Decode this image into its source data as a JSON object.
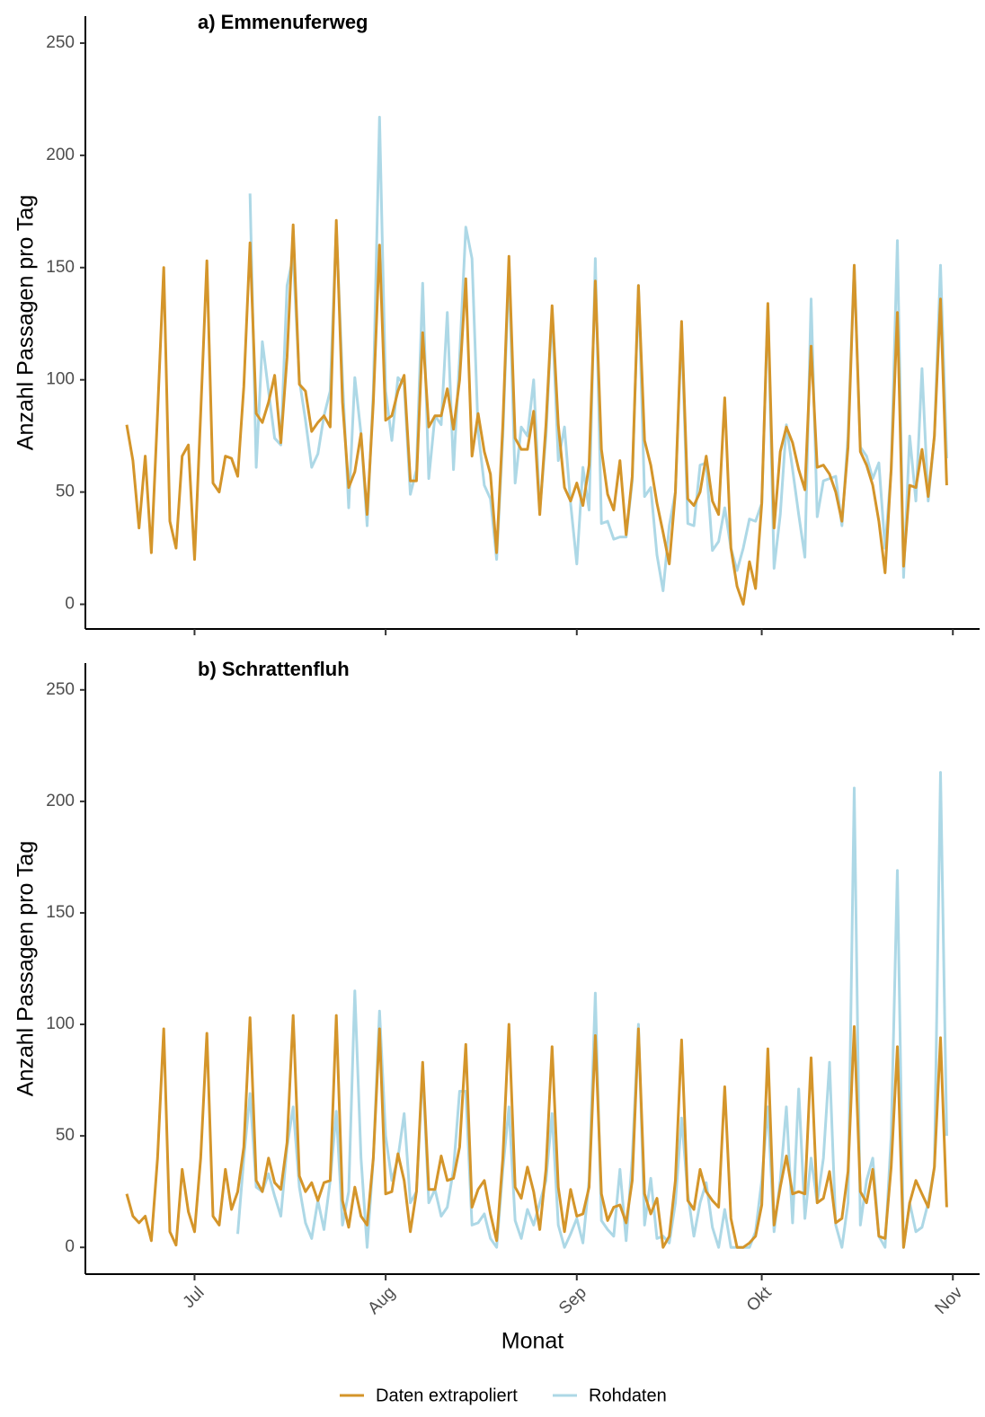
{
  "chart_data": [
    {
      "type": "line",
      "title": "a) Emmenuferweg",
      "ylabel": "Anzahl Passagen pro Tag",
      "ylim": [
        -11,
        262
      ],
      "yticks": [
        0,
        50,
        100,
        150,
        200,
        250
      ],
      "series": [
        {
          "name": "Daten extrapoliert",
          "color": "#d4952a",
          "values": [
            80,
            64,
            34,
            66,
            23,
            85,
            150,
            37,
            25,
            66,
            71,
            20,
            85,
            153,
            54,
            50,
            66,
            65,
            57,
            97,
            161,
            85,
            81,
            90,
            102,
            72,
            110,
            169,
            98,
            95,
            77,
            81,
            84,
            79,
            171,
            90,
            52,
            59,
            76,
            40,
            90,
            160,
            82,
            84,
            95,
            102,
            55,
            55,
            121,
            79,
            84,
            84,
            96,
            78,
            100,
            145,
            66,
            85,
            68,
            58,
            23,
            80,
            155,
            74,
            69,
            69,
            86,
            40,
            80,
            133,
            80,
            52,
            46,
            54,
            44,
            62,
            144,
            69,
            49,
            42,
            64,
            31,
            57,
            142,
            73,
            62,
            45,
            32,
            18,
            50,
            126,
            47,
            44,
            50,
            66,
            46,
            40,
            92,
            25,
            8,
            0,
            19,
            7,
            45,
            134,
            34,
            68,
            79,
            72,
            60,
            51,
            115,
            61,
            62,
            58,
            50,
            37,
            70,
            151,
            68,
            62,
            53,
            37,
            14,
            60,
            130,
            17,
            53,
            52,
            69,
            48,
            75,
            136,
            53,
            null
          ]
        },
        {
          "name": "Rohdaten",
          "color": "#add8e6",
          "values": [
            null,
            null,
            null,
            null,
            null,
            null,
            null,
            null,
            null,
            null,
            null,
            null,
            null,
            null,
            null,
            null,
            null,
            null,
            null,
            null,
            183,
            61,
            117,
            95,
            74,
            71,
            142,
            155,
            100,
            82,
            61,
            67,
            84,
            95,
            168,
            100,
            43,
            101,
            76,
            35,
            95,
            217,
            95,
            73,
            101,
            98,
            49,
            60,
            143,
            56,
            84,
            80,
            130,
            60,
            110,
            168,
            154,
            77,
            53,
            47,
            20,
            75,
            150,
            54,
            79,
            75,
            100,
            42,
            75,
            130,
            64,
            79,
            45,
            18,
            61,
            42,
            154,
            36,
            37,
            29,
            30,
            30,
            55,
            142,
            48,
            52,
            22,
            6,
            35,
            50,
            123,
            36,
            35,
            62,
            63,
            24,
            28,
            43,
            25,
            15,
            25,
            38,
            37,
            45,
            133,
            16,
            40,
            80,
            60,
            40,
            21,
            136,
            39,
            55,
            56,
            57,
            35,
            75,
            151,
            70,
            66,
            56,
            63,
            25,
            60,
            162,
            12,
            75,
            46,
            105,
            46,
            75,
            151,
            65,
            null
          ]
        }
      ]
    },
    {
      "type": "line",
      "title": "b) Schrattenfluh",
      "ylabel": "Anzahl Passagen pro Tag",
      "xlabel": "Monat",
      "ylim": [
        -12,
        262
      ],
      "yticks": [
        0,
        50,
        100,
        150,
        200,
        250
      ],
      "categories": [
        null,
        null,
        null,
        null,
        null,
        null,
        null,
        null,
        null,
        null,
        null,
        "Jul",
        null,
        null,
        null,
        null,
        null,
        null,
        null,
        null,
        null,
        null,
        null,
        null,
        null,
        null,
        null,
        null,
        null,
        null,
        null,
        null,
        null,
        null,
        null,
        null,
        null,
        null,
        null,
        null,
        null,
        null,
        "Aug",
        null,
        null,
        null,
        null,
        null,
        null,
        null,
        null,
        null,
        null,
        null,
        null,
        null,
        null,
        null,
        null,
        null,
        null,
        null,
        null,
        null,
        null,
        null,
        null,
        null,
        null,
        null,
        null,
        null,
        null,
        "Sep",
        null,
        null,
        null,
        null,
        null,
        null,
        null,
        null,
        null,
        null,
        null,
        null,
        null,
        null,
        null,
        null,
        null,
        null,
        null,
        null,
        null,
        null,
        null,
        null,
        null,
        null,
        null,
        null,
        null,
        "Okt",
        null,
        null,
        null,
        null,
        null,
        null,
        null,
        null,
        null,
        null,
        null,
        null,
        null,
        null,
        null,
        null,
        null,
        null,
        null,
        null,
        null,
        null,
        null,
        null,
        null,
        null,
        null,
        null,
        null,
        null,
        "Nov"
      ],
      "series": [
        {
          "color": "#d4952a",
          "values": [
            24,
            14,
            11,
            14,
            3,
            40,
            98,
            7,
            1,
            35,
            16,
            7,
            40,
            96,
            14,
            10,
            35,
            17,
            25,
            45,
            103,
            30,
            25,
            40,
            29,
            26,
            47,
            104,
            32,
            25,
            29,
            21,
            29,
            30,
            104,
            21,
            9,
            27,
            14,
            10,
            40,
            98,
            24,
            25,
            42,
            30,
            7,
            25,
            83,
            26,
            26,
            41,
            30,
            31,
            45,
            91,
            18,
            26,
            30,
            15,
            3,
            40,
            100,
            27,
            22,
            36,
            25,
            8,
            35,
            90,
            27,
            7,
            26,
            14,
            15,
            27,
            95,
            24,
            12,
            18,
            19,
            11,
            30,
            98,
            24,
            15,
            22,
            0,
            5,
            30,
            93,
            21,
            17,
            35,
            25,
            21,
            18,
            72,
            13,
            0,
            0,
            2,
            5,
            19,
            89,
            10,
            27,
            41,
            24,
            25,
            24,
            85,
            20,
            22,
            34,
            11,
            13,
            34,
            99,
            25,
            20,
            35,
            5,
            4,
            36,
            90,
            0,
            20,
            30,
            24,
            18,
            36,
            94,
            18,
            null
          ]
        },
        {
          "color": "#add8e6",
          "values": [
            null,
            null,
            null,
            null,
            null,
            null,
            null,
            null,
            null,
            null,
            null,
            null,
            null,
            null,
            null,
            null,
            null,
            null,
            6,
            40,
            69,
            27,
            25,
            33,
            23,
            14,
            45,
            63,
            27,
            11,
            4,
            21,
            8,
            30,
            61,
            10,
            25,
            115,
            40,
            0,
            40,
            106,
            50,
            30,
            40,
            60,
            20,
            25,
            80,
            20,
            26,
            14,
            18,
            35,
            70,
            70,
            10,
            11,
            15,
            4,
            0,
            35,
            63,
            12,
            4,
            17,
            10,
            20,
            30,
            60,
            10,
            0,
            6,
            13,
            2,
            30,
            114,
            12,
            8,
            5,
            35,
            3,
            40,
            100,
            10,
            31,
            4,
            5,
            2,
            20,
            58,
            24,
            5,
            20,
            29,
            9,
            0,
            17,
            0,
            0,
            0,
            0,
            7,
            30,
            63,
            7,
            30,
            63,
            11,
            71,
            13,
            40,
            20,
            40,
            83,
            10,
            0,
            20,
            206,
            10,
            30,
            40,
            5,
            0,
            50,
            169,
            0,
            20,
            7,
            9,
            20,
            36,
            213,
            50,
            null
          ]
        }
      ]
    }
  ]
}
